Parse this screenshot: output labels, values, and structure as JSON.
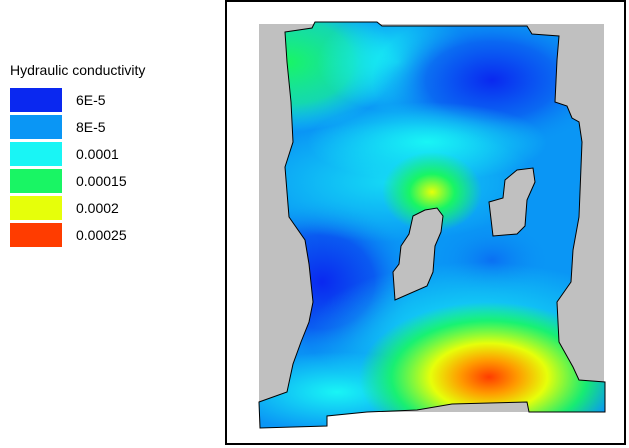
{
  "legend": {
    "title": "Hydraulic conductivity",
    "items": [
      {
        "label": "6E-5",
        "color": "#0a28f0"
      },
      {
        "label": "8E-5",
        "color": "#0a96f5"
      },
      {
        "label": "0.0001",
        "color": "#19f5f5"
      },
      {
        "label": "0.00015",
        "color": "#19f564"
      },
      {
        "label": "0.0002",
        "color": "#e6ff0a"
      },
      {
        "label": "0.00025",
        "color": "#ff3c00"
      }
    ]
  },
  "map": {
    "background_color": "#c0c0c0",
    "boundary_color": "#000000"
  }
}
